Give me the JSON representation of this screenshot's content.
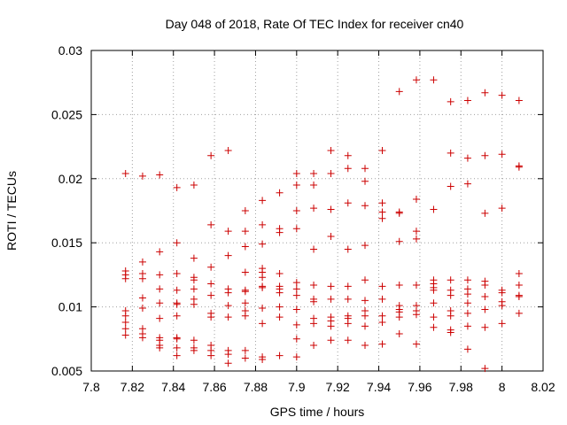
{
  "chart_data": {
    "type": "scatter",
    "title": "Day 048 of 2018, Rate Of TEC Index for receiver cn40",
    "xlabel": "GPS time / hours",
    "ylabel": "ROTI / TECUs",
    "xlim": [
      7.8,
      8.02
    ],
    "ylim": [
      0.005,
      0.03
    ],
    "grid": true,
    "marker": "+",
    "color": "#cc0000",
    "xticks": [
      7.8,
      7.82,
      7.84,
      7.86,
      7.88,
      7.9,
      7.92,
      7.94,
      7.96,
      7.98,
      8.0,
      8.02
    ],
    "xtick_labels": [
      "7.8",
      "7.82",
      "7.84",
      "7.86",
      "7.88",
      "7.9",
      "7.92",
      "7.94",
      "7.96",
      "7.98",
      "8",
      "8.02"
    ],
    "yticks": [
      0.005,
      0.01,
      0.015,
      0.02,
      0.025,
      0.03
    ],
    "ytick_labels": [
      "0.005",
      "0.01",
      "0.015",
      "0.02",
      "0.025",
      "0.03"
    ],
    "series": [
      {
        "name": "ROTI",
        "points": [
          [
            7.8167,
            0.0204
          ],
          [
            7.8167,
            0.0128
          ],
          [
            7.8167,
            0.0125
          ],
          [
            7.8167,
            0.0122
          ],
          [
            7.8167,
            0.0097
          ],
          [
            7.8167,
            0.0093
          ],
          [
            7.8167,
            0.0088
          ],
          [
            7.8167,
            0.0083
          ],
          [
            7.8167,
            0.0078
          ],
          [
            7.825,
            0.0202
          ],
          [
            7.825,
            0.0135
          ],
          [
            7.825,
            0.0126
          ],
          [
            7.825,
            0.0122
          ],
          [
            7.825,
            0.0107
          ],
          [
            7.825,
            0.0099
          ],
          [
            7.825,
            0.0083
          ],
          [
            7.825,
            0.0079
          ],
          [
            7.825,
            0.0076
          ],
          [
            7.8333,
            0.0203
          ],
          [
            7.8333,
            0.0143
          ],
          [
            7.8333,
            0.0125
          ],
          [
            7.8333,
            0.0114
          ],
          [
            7.8333,
            0.0103
          ],
          [
            7.8333,
            0.0091
          ],
          [
            7.8333,
            0.0076
          ],
          [
            7.8333,
            0.0074
          ],
          [
            7.8333,
            0.007
          ],
          [
            7.8333,
            0.0068
          ],
          [
            7.8417,
            0.0193
          ],
          [
            7.8417,
            0.015
          ],
          [
            7.8417,
            0.0126
          ],
          [
            7.8417,
            0.0113
          ],
          [
            7.8417,
            0.0103
          ],
          [
            7.8417,
            0.0102
          ],
          [
            7.8417,
            0.0093
          ],
          [
            7.8417,
            0.0076
          ],
          [
            7.8417,
            0.0075
          ],
          [
            7.8417,
            0.0068
          ],
          [
            7.8417,
            0.0062
          ],
          [
            7.85,
            0.0195
          ],
          [
            7.85,
            0.0138
          ],
          [
            7.85,
            0.0123
          ],
          [
            7.85,
            0.0121
          ],
          [
            7.85,
            0.0114
          ],
          [
            7.85,
            0.0106
          ],
          [
            7.85,
            0.0102
          ],
          [
            7.85,
            0.0074
          ],
          [
            7.85,
            0.0068
          ],
          [
            7.85,
            0.0066
          ],
          [
            7.8583,
            0.0218
          ],
          [
            7.8583,
            0.0164
          ],
          [
            7.8583,
            0.0131
          ],
          [
            7.8583,
            0.0118
          ],
          [
            7.8583,
            0.0109
          ],
          [
            7.8583,
            0.0095
          ],
          [
            7.8583,
            0.0092
          ],
          [
            7.8583,
            0.007
          ],
          [
            7.8583,
            0.0066
          ],
          [
            7.8583,
            0.0062
          ],
          [
            7.8667,
            0.0222
          ],
          [
            7.8667,
            0.0159
          ],
          [
            7.8667,
            0.014
          ],
          [
            7.8667,
            0.0114
          ],
          [
            7.8667,
            0.0111
          ],
          [
            7.8667,
            0.0101
          ],
          [
            7.8667,
            0.0092
          ],
          [
            7.8667,
            0.0066
          ],
          [
            7.8667,
            0.0063
          ],
          [
            7.8667,
            0.0056
          ],
          [
            7.875,
            0.0175
          ],
          [
            7.875,
            0.0159
          ],
          [
            7.875,
            0.0147
          ],
          [
            7.875,
            0.0127
          ],
          [
            7.875,
            0.0113
          ],
          [
            7.875,
            0.0112
          ],
          [
            7.875,
            0.0103
          ],
          [
            7.875,
            0.0097
          ],
          [
            7.875,
            0.0093
          ],
          [
            7.875,
            0.0066
          ],
          [
            7.875,
            0.006
          ],
          [
            7.8833,
            0.0183
          ],
          [
            7.8833,
            0.0164
          ],
          [
            7.8833,
            0.0149
          ],
          [
            7.8833,
            0.013
          ],
          [
            7.8833,
            0.0127
          ],
          [
            7.8833,
            0.0123
          ],
          [
            7.8833,
            0.0116
          ],
          [
            7.8833,
            0.0115
          ],
          [
            7.8833,
            0.0099
          ],
          [
            7.8833,
            0.0087
          ],
          [
            7.8833,
            0.0061
          ],
          [
            7.8833,
            0.0059
          ],
          [
            7.8917,
            0.0189
          ],
          [
            7.8917,
            0.0161
          ],
          [
            7.8917,
            0.0158
          ],
          [
            7.8917,
            0.0126
          ],
          [
            7.8917,
            0.0116
          ],
          [
            7.8917,
            0.0114
          ],
          [
            7.8917,
            0.0111
          ],
          [
            7.8917,
            0.01
          ],
          [
            7.8917,
            0.0092
          ],
          [
            7.8917,
            0.0062
          ],
          [
            7.9,
            0.0204
          ],
          [
            7.9,
            0.0195
          ],
          [
            7.9,
            0.0175
          ],
          [
            7.9,
            0.0161
          ],
          [
            7.9,
            0.0119
          ],
          [
            7.9,
            0.0114
          ],
          [
            7.9,
            0.0109
          ],
          [
            7.9,
            0.0098
          ],
          [
            7.9,
            0.0086
          ],
          [
            7.9,
            0.0075
          ],
          [
            7.9,
            0.0061
          ],
          [
            7.9083,
            0.0204
          ],
          [
            7.9083,
            0.0195
          ],
          [
            7.9083,
            0.0177
          ],
          [
            7.9083,
            0.0145
          ],
          [
            7.9083,
            0.0117
          ],
          [
            7.9083,
            0.0106
          ],
          [
            7.9083,
            0.0104
          ],
          [
            7.9083,
            0.0091
          ],
          [
            7.9083,
            0.0087
          ],
          [
            7.9083,
            0.007
          ],
          [
            7.9167,
            0.0222
          ],
          [
            7.9167,
            0.0204
          ],
          [
            7.9167,
            0.0176
          ],
          [
            7.9167,
            0.0155
          ],
          [
            7.9167,
            0.0116
          ],
          [
            7.9167,
            0.0106
          ],
          [
            7.9167,
            0.0092
          ],
          [
            7.9167,
            0.0089
          ],
          [
            7.9167,
            0.0085
          ],
          [
            7.9167,
            0.0074
          ],
          [
            7.925,
            0.0218
          ],
          [
            7.925,
            0.0208
          ],
          [
            7.925,
            0.0181
          ],
          [
            7.925,
            0.0145
          ],
          [
            7.925,
            0.0116
          ],
          [
            7.925,
            0.0106
          ],
          [
            7.925,
            0.0093
          ],
          [
            7.925,
            0.0091
          ],
          [
            7.925,
            0.0087
          ],
          [
            7.925,
            0.0074
          ],
          [
            7.9333,
            0.0208
          ],
          [
            7.9333,
            0.0198
          ],
          [
            7.9333,
            0.0179
          ],
          [
            7.9333,
            0.0148
          ],
          [
            7.9333,
            0.0121
          ],
          [
            7.9333,
            0.0105
          ],
          [
            7.9333,
            0.0097
          ],
          [
            7.9333,
            0.0093
          ],
          [
            7.9333,
            0.0085
          ],
          [
            7.9333,
            0.007
          ],
          [
            7.9417,
            0.0222
          ],
          [
            7.9417,
            0.0181
          ],
          [
            7.9417,
            0.0174
          ],
          [
            7.9417,
            0.0169
          ],
          [
            7.9417,
            0.0116
          ],
          [
            7.9417,
            0.0106
          ],
          [
            7.9417,
            0.0093
          ],
          [
            7.9417,
            0.0088
          ],
          [
            7.9417,
            0.0071
          ],
          [
            7.95,
            0.0268
          ],
          [
            7.95,
            0.0174
          ],
          [
            7.95,
            0.0173
          ],
          [
            7.95,
            0.0151
          ],
          [
            7.95,
            0.0117
          ],
          [
            7.95,
            0.0101
          ],
          [
            7.95,
            0.0098
          ],
          [
            7.95,
            0.0096
          ],
          [
            7.95,
            0.0092
          ],
          [
            7.95,
            0.0079
          ],
          [
            7.9583,
            0.0277
          ],
          [
            7.9583,
            0.0184
          ],
          [
            7.9583,
            0.0159
          ],
          [
            7.9583,
            0.0153
          ],
          [
            7.9583,
            0.0117
          ],
          [
            7.9583,
            0.0101
          ],
          [
            7.9583,
            0.0097
          ],
          [
            7.9583,
            0.0094
          ],
          [
            7.9583,
            0.0071
          ],
          [
            7.9667,
            0.0277
          ],
          [
            7.9667,
            0.0176
          ],
          [
            7.9667,
            0.0121
          ],
          [
            7.9667,
            0.0118
          ],
          [
            7.9667,
            0.0115
          ],
          [
            7.9667,
            0.0113
          ],
          [
            7.9667,
            0.0103
          ],
          [
            7.9667,
            0.0092
          ],
          [
            7.9667,
            0.0084
          ],
          [
            7.975,
            0.026
          ],
          [
            7.975,
            0.022
          ],
          [
            7.975,
            0.0194
          ],
          [
            7.975,
            0.0121
          ],
          [
            7.975,
            0.0113
          ],
          [
            7.975,
            0.0109
          ],
          [
            7.975,
            0.0097
          ],
          [
            7.975,
            0.0093
          ],
          [
            7.975,
            0.0082
          ],
          [
            7.975,
            0.008
          ],
          [
            7.9833,
            0.0261
          ],
          [
            7.9833,
            0.0216
          ],
          [
            7.9833,
            0.0196
          ],
          [
            7.9833,
            0.0121
          ],
          [
            7.9833,
            0.0114
          ],
          [
            7.9833,
            0.011
          ],
          [
            7.9833,
            0.0103
          ],
          [
            7.9833,
            0.0095
          ],
          [
            7.9833,
            0.0085
          ],
          [
            7.9833,
            0.0067
          ],
          [
            7.9917,
            0.0267
          ],
          [
            7.9917,
            0.0218
          ],
          [
            7.9917,
            0.0173
          ],
          [
            7.9917,
            0.012
          ],
          [
            7.9917,
            0.0117
          ],
          [
            7.9917,
            0.0108
          ],
          [
            7.9917,
            0.0098
          ],
          [
            7.9917,
            0.0084
          ],
          [
            7.9917,
            0.0052
          ],
          [
            8.0,
            0.0265
          ],
          [
            8.0,
            0.0219
          ],
          [
            8.0,
            0.0177
          ],
          [
            8.0,
            0.0113
          ],
          [
            8.0,
            0.0111
          ],
          [
            8.0,
            0.0104
          ],
          [
            8.0,
            0.0101
          ],
          [
            8.0,
            0.0087
          ],
          [
            8.0083,
            0.0261
          ],
          [
            8.0083,
            0.021
          ],
          [
            8.0083,
            0.0209
          ],
          [
            8.0083,
            0.0126
          ],
          [
            8.0083,
            0.0117
          ],
          [
            8.0083,
            0.0109
          ],
          [
            8.0083,
            0.0108
          ],
          [
            8.0083,
            0.0095
          ]
        ]
      }
    ]
  }
}
